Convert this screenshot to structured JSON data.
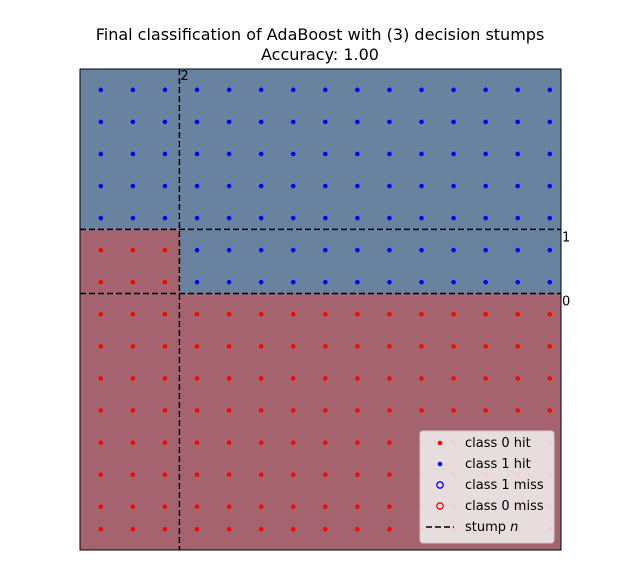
{
  "chart_data": {
    "type": "scatter",
    "title": "Final classification of AdaBoost with (3) decision stumps",
    "subtitle": "Accuracy: 1.00",
    "xlim": [
      0,
      15
    ],
    "ylim": [
      0,
      15
    ],
    "grid": false,
    "legend_position": "bottom-right",
    "colors": {
      "class0_region": "#a5626f",
      "class1_region": "#68829f",
      "class0_point": "#ff0000",
      "class1_point": "#0000ff",
      "stump_line": "#000000"
    },
    "grid_points": {
      "x": [
        0.65,
        1.65,
        2.65,
        3.65,
        4.65,
        5.65,
        6.65,
        7.65,
        8.65,
        9.65,
        10.65,
        11.65,
        12.65,
        13.65,
        14.65
      ],
      "y": [
        14.35,
        13.35,
        12.35,
        11.35,
        10.35,
        9.35,
        8.35,
        7.35,
        6.35,
        5.35,
        4.35,
        3.35,
        2.35,
        1.35,
        0.65
      ]
    },
    "stumps": [
      {
        "label": "0",
        "orientation": "horizontal",
        "value": 8
      },
      {
        "label": "1",
        "orientation": "horizontal",
        "value": 10
      },
      {
        "label": "2",
        "orientation": "vertical",
        "value": 3.1
      }
    ],
    "regions": [
      {
        "class": 1,
        "x": [
          0,
          15
        ],
        "y": [
          10,
          15
        ]
      },
      {
        "class": 1,
        "x": [
          3.1,
          15
        ],
        "y": [
          8,
          10
        ]
      },
      {
        "class": 0,
        "x": [
          0,
          3.1
        ],
        "y": [
          8,
          10
        ]
      },
      {
        "class": 0,
        "x": [
          0,
          15
        ],
        "y": [
          0,
          8
        ]
      }
    ],
    "legend": [
      {
        "label": "class 0 hit",
        "marker": "dot",
        "color": "#ff0000"
      },
      {
        "label": "class 1 hit",
        "marker": "dot",
        "color": "#0000ff"
      },
      {
        "label": "class 1 miss",
        "marker": "ring",
        "color": "#0000ff"
      },
      {
        "label": "class 0 miss",
        "marker": "ring",
        "color": "#ff0000"
      },
      {
        "label": "stump",
        "label_italic": "n",
        "marker": "dashed",
        "color": "#000000"
      }
    ]
  }
}
